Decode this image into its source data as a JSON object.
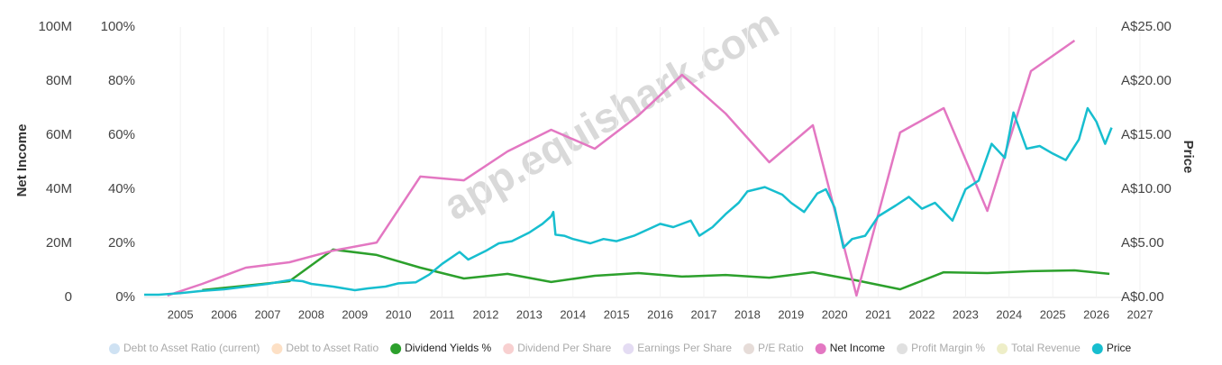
{
  "chart_data": {
    "type": "line",
    "watermark": "app.equishark.com",
    "y_label": "Net Income",
    "y3_label": "Price",
    "xlim": [
      2004.17,
      2027
    ],
    "xticks": [
      2005,
      2006,
      2007,
      2008,
      2009,
      2010,
      2011,
      2012,
      2013,
      2014,
      2015,
      2016,
      2017,
      2018,
      2019,
      2020,
      2021,
      2022,
      2023,
      2024,
      2025,
      2026,
      2027
    ],
    "ylim": [
      0,
      100000000
    ],
    "yticks": [
      {
        "value": 0,
        "label": "0"
      },
      {
        "value": 20000000,
        "label": "20M"
      },
      {
        "value": 40000000,
        "label": "40M"
      },
      {
        "value": 60000000,
        "label": "60M"
      },
      {
        "value": 80000000,
        "label": "80M"
      },
      {
        "value": 100000000,
        "label": "100M"
      }
    ],
    "y2lim": [
      0,
      100
    ],
    "y2ticks": [
      {
        "value": 0,
        "label": "0%"
      },
      {
        "value": 20,
        "label": "20%"
      },
      {
        "value": 40,
        "label": "40%"
      },
      {
        "value": 60,
        "label": "60%"
      },
      {
        "value": 80,
        "label": "80%"
      },
      {
        "value": 100,
        "label": "100%"
      }
    ],
    "y3lim": [
      0,
      25
    ],
    "y3ticks": [
      {
        "value": 0,
        "label": "A$0.00"
      },
      {
        "value": 5,
        "label": "A$5.00"
      },
      {
        "value": 10,
        "label": "A$10.00"
      },
      {
        "value": 15,
        "label": "A$15.00"
      },
      {
        "value": 20,
        "label": "A$20.00"
      },
      {
        "value": 25,
        "label": "A$25.00"
      }
    ],
    "series": [
      {
        "name": "Debt to Asset Ratio (current)",
        "color": "#cfe2f3",
        "hidden": true
      },
      {
        "name": "Debt to Asset Ratio",
        "color": "#fde0c5",
        "hidden": true
      },
      {
        "name": "Dividend Yields %",
        "color": "#2ca02c",
        "axis": "y2",
        "x": [
          2005.5,
          2007.5,
          2008.5,
          2009.5,
          2010.5,
          2011.5,
          2012.5,
          2013.5,
          2014.5,
          2015.5,
          2016.5,
          2017.5,
          2018.5,
          2019.5,
          2020.5,
          2021.5,
          2022.5,
          2023.5,
          2024.5,
          2025.5,
          2026.3
        ],
        "values": [
          2.7,
          6,
          17.7,
          15.7,
          11,
          7,
          8.7,
          5.7,
          8,
          9,
          7.7,
          8.3,
          7.3,
          9.3,
          6.3,
          3,
          9.3,
          9,
          9.7,
          10,
          8.7
        ]
      },
      {
        "name": "Dividend Per Share",
        "color": "#f8d0d0",
        "hidden": true
      },
      {
        "name": "Earnings Per Share",
        "color": "#e4dcf3",
        "hidden": true
      },
      {
        "name": "P/E Ratio",
        "color": "#e6dcd8",
        "hidden": true
      },
      {
        "name": "Net Income",
        "color": "#e377c2",
        "axis": "y",
        "x": [
          2004.7,
          2005.5,
          2006.5,
          2007.5,
          2008.5,
          2009.5,
          2010.5,
          2011.5,
          2012.5,
          2013.5,
          2014.5,
          2015.5,
          2016.5,
          2017.5,
          2018.5,
          2019.5,
          2020.5,
          2021.5,
          2022.5,
          2023.5,
          2024.5,
          2025.5
        ],
        "values": [
          700000,
          5000000,
          11000000,
          13000000,
          17300000,
          20300000,
          44700000,
          43300000,
          54000000,
          62000000,
          55000000,
          67300000,
          82300000,
          68000000,
          50000000,
          63700000,
          700000,
          61000000,
          70000000,
          32000000,
          83700000,
          95000000
        ]
      },
      {
        "name": "Profit Margin %",
        "color": "#e0e0e0",
        "hidden": true
      },
      {
        "name": "Total Revenue",
        "color": "#eeeec8",
        "hidden": true
      },
      {
        "name": "Price",
        "color": "#17becf",
        "axis": "y3",
        "x": [
          2004.17,
          2004.5,
          2005,
          2005.5,
          2006,
          2006.5,
          2007,
          2007.5,
          2007.8,
          2008,
          2008.5,
          2009,
          2009.3,
          2009.7,
          2010,
          2010.4,
          2010.7,
          2011,
          2011.4,
          2011.6,
          2012,
          2012.3,
          2012.6,
          2013,
          2013.3,
          2013.5,
          2013.55,
          2013.6,
          2013.8,
          2014,
          2014.4,
          2014.7,
          2015,
          2015.4,
          2015.7,
          2016,
          2016.3,
          2016.7,
          2016.9,
          2017.2,
          2017.5,
          2017.8,
          2018,
          2018.4,
          2018.8,
          2019,
          2019.3,
          2019.6,
          2019.8,
          2020,
          2020.2,
          2020.4,
          2020.7,
          2021,
          2021.4,
          2021.7,
          2022,
          2022.3,
          2022.7,
          2023,
          2023.3,
          2023.6,
          2023.9,
          2024.1,
          2024.4,
          2024.7,
          2025,
          2025.3,
          2025.6,
          2025.8,
          2026,
          2026.2,
          2026.35
        ],
        "values": [
          0.25,
          0.25,
          0.4,
          0.6,
          0.75,
          1.0,
          1.25,
          1.6,
          1.5,
          1.25,
          1.0,
          0.67,
          0.83,
          1.0,
          1.3,
          1.4,
          2.1,
          3.1,
          4.2,
          3.5,
          4.3,
          5.0,
          5.2,
          6.0,
          6.8,
          7.5,
          7.9,
          5.8,
          5.7,
          5.4,
          5.0,
          5.4,
          5.2,
          5.7,
          6.25,
          6.8,
          6.5,
          7.1,
          5.7,
          6.5,
          7.7,
          8.75,
          9.8,
          10.2,
          9.5,
          8.75,
          7.9,
          9.6,
          10.0,
          8.3,
          4.6,
          5.4,
          5.7,
          7.5,
          8.5,
          9.3,
          8.2,
          8.75,
          7.1,
          10.0,
          10.8,
          14.2,
          12.9,
          17.1,
          13.75,
          14.0,
          13.3,
          12.7,
          14.6,
          17.5,
          16.25,
          14.2,
          15.7
        ]
      }
    ]
  }
}
